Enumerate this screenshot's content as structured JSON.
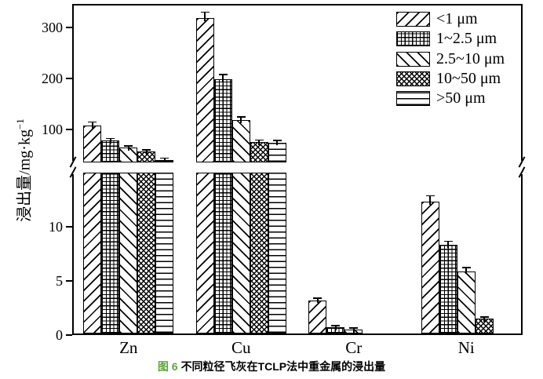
{
  "figure": {
    "caption_number": "图 6",
    "caption_text": "不同粒径飞灰在TCLP法中重金属的浸出量",
    "caption_number_color": "#5fa33c"
  },
  "axis": {
    "y_label_main": "浸出量/mg·kg",
    "y_label_sup": "−1",
    "top_panel": {
      "min": 35,
      "max": 346,
      "ticks": [
        100,
        200,
        300
      ]
    },
    "bottom_panel": {
      "min": 0,
      "max": 15,
      "ticks": [
        0,
        5,
        10
      ]
    }
  },
  "chart_data": {
    "type": "bar",
    "title": "",
    "xlabel": "",
    "ylabel": "浸出量/mg·kg−1",
    "categories": [
      "Zn",
      "Cu",
      "Cr",
      "Ni"
    ],
    "series": [
      {
        "name": "<1 μm",
        "pattern": "diagonal-up",
        "values": [
          107,
          318,
          3.2,
          12.3
        ],
        "errors": [
          6,
          11,
          0.15,
          0.5
        ]
      },
      {
        "name": "1~2.5 μm",
        "pattern": "grid",
        "values": [
          78,
          198,
          0.7,
          8.3
        ],
        "errors": [
          3,
          8,
          0.08,
          0.3
        ]
      },
      {
        "name": "2.5~10 μm",
        "pattern": "diagonal-down",
        "values": [
          64,
          118,
          0.5,
          5.9
        ],
        "errors": [
          2,
          5,
          0.05,
          0.3
        ]
      },
      {
        "name": "10~50 μm",
        "pattern": "dense-crosshatch",
        "values": [
          56,
          75,
          0,
          1.5
        ],
        "errors": [
          2,
          3,
          0,
          0.1
        ]
      },
      {
        "name": ">50 μm",
        "pattern": "horizontal",
        "values": [
          40,
          74,
          0,
          0
        ],
        "errors": [
          1.5,
          3,
          0,
          0
        ]
      }
    ],
    "broken_axis": {
      "bottom_panel_range": [
        0,
        15
      ],
      "top_panel_range": [
        35,
        346
      ]
    },
    "grid": false,
    "legend_position": "top-right",
    "error_bars": true
  }
}
